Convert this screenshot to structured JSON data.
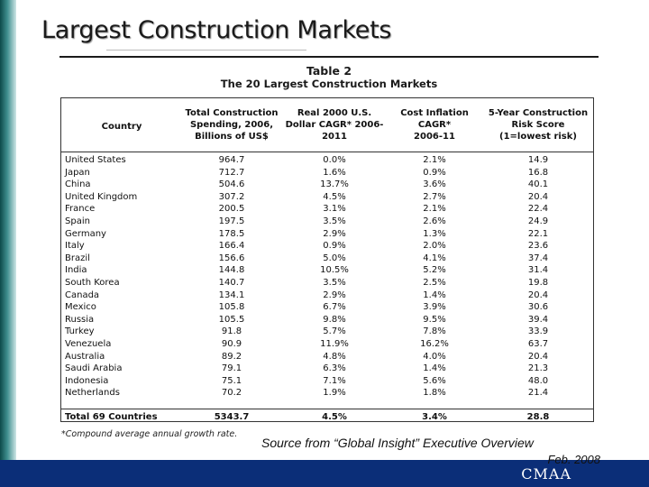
{
  "slide": {
    "title": "Largest Construction Markets"
  },
  "table": {
    "caption_line1": "Table 2",
    "caption_line2": "The 20 Largest Construction Markets",
    "columns": [
      "Country",
      "Total Construction\nSpending, 2006,\nBillions of US$",
      "Real 2000 U.S.\nDollar CAGR* 2006-\n2011",
      "Cost Inflation\nCAGR*\n2006-11",
      "5-Year Construction\nRisk Score\n(1=lowest risk)"
    ],
    "rows": [
      [
        "United States",
        "964.7",
        "0.0%",
        "2.1%",
        "14.9"
      ],
      [
        "Japan",
        "712.7",
        "1.6%",
        "0.9%",
        "16.8"
      ],
      [
        "China",
        "504.6",
        "13.7%",
        "3.6%",
        "40.1"
      ],
      [
        "United Kingdom",
        "307.2",
        "4.5%",
        "2.7%",
        "20.4"
      ],
      [
        "France",
        "200.5",
        "3.1%",
        "2.1%",
        "22.4"
      ],
      [
        "Spain",
        "197.5",
        "3.5%",
        "2.6%",
        "24.9"
      ],
      [
        "Germany",
        "178.5",
        "2.9%",
        "1.3%",
        "22.1"
      ],
      [
        "Italy",
        "166.4",
        "0.9%",
        "2.0%",
        "23.6"
      ],
      [
        "Brazil",
        "156.6",
        "5.0%",
        "4.1%",
        "37.4"
      ],
      [
        "India",
        "144.8",
        "10.5%",
        "5.2%",
        "31.4"
      ],
      [
        "South Korea",
        "140.7",
        "3.5%",
        "2.5%",
        "19.8"
      ],
      [
        "Canada",
        "134.1",
        "2.9%",
        "1.4%",
        "20.4"
      ],
      [
        "Mexico",
        "105.8",
        "6.7%",
        "3.9%",
        "30.6"
      ],
      [
        "Russia",
        "105.5",
        "9.8%",
        "9.5%",
        "39.4"
      ],
      [
        "Turkey",
        "91.8",
        "5.7%",
        "7.8%",
        "33.9"
      ],
      [
        "Venezuela",
        "90.9",
        "11.9%",
        "16.2%",
        "63.7"
      ],
      [
        "Australia",
        "89.2",
        "4.8%",
        "4.0%",
        "20.4"
      ],
      [
        "Saudi Arabia",
        "79.1",
        "6.3%",
        "1.4%",
        "21.3"
      ],
      [
        "Indonesia",
        "75.1",
        "7.1%",
        "5.6%",
        "48.0"
      ],
      [
        "Netherlands",
        "70.2",
        "1.9%",
        "1.8%",
        "21.4"
      ]
    ],
    "total_row": [
      "Total 69 Countries",
      "5343.7",
      "4.5%",
      "3.4%",
      "28.8"
    ]
  },
  "footnote": "*Compound average annual growth rate.",
  "source": "Source from “Global Insight” Executive Overview",
  "source_date": "Feb. 2008",
  "footer": {
    "brand": "CMAA",
    "bar_color": "#0b2e78"
  }
}
